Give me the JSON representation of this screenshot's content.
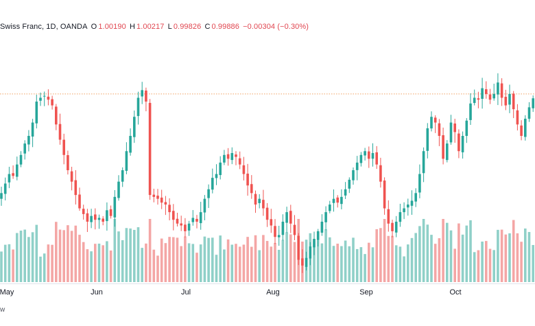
{
  "legend": {
    "symbol": "Swiss Franc, 1D, OANDA",
    "o_label": "O",
    "o": "1.00190",
    "h_label": "H",
    "h": "1.00217",
    "l_label": "L",
    "l": "0.99826",
    "c_label": "C",
    "c": "0.99886",
    "change": "−0.00304 (−0.30%)"
  },
  "footer": {
    "text": "w"
  },
  "colors": {
    "up": "#26a69a",
    "down": "#ef5350",
    "vol_up": "#8fd0c8",
    "vol_down": "#f4a6a5",
    "resistance": "#f0a060"
  },
  "chart_data": {
    "type": "candlestick",
    "interval": "1D",
    "resistance_line": 1.0,
    "x_tick_labels": [
      "May",
      "Jun",
      "Jul",
      "Aug",
      "Sep",
      "Oct"
    ],
    "ylim": [
      0.962,
      1.016
    ],
    "closes": [
      0.974,
      0.9765,
      0.979,
      0.9785,
      0.9815,
      0.984,
      0.987,
      0.989,
      0.9925,
      0.998,
      0.999,
      0.9995,
      0.9985,
      0.997,
      0.992,
      0.988,
      0.984,
      0.98,
      0.977,
      0.9735,
      0.97,
      0.9685,
      0.9665,
      0.968,
      0.967,
      0.9675,
      0.9665,
      0.9695,
      0.968,
      0.973,
      0.977,
      0.98,
      0.985,
      0.989,
      0.994,
      0.999,
      1.001,
      0.998,
      0.9735,
      0.973,
      0.9725,
      0.9715,
      0.971,
      0.969,
      0.967,
      0.966,
      0.9655,
      0.964,
      0.966,
      0.9675,
      0.9665,
      0.969,
      0.9725,
      0.975,
      0.978,
      0.979,
      0.982,
      0.984,
      0.983,
      0.9845,
      0.9835,
      0.9815,
      0.979,
      0.976,
      0.974,
      0.971,
      0.9725,
      0.97,
      0.967,
      0.9655,
      0.9625,
      0.963,
      0.9665,
      0.969,
      0.966,
      0.963,
      0.9565,
      0.955,
      0.957,
      0.96,
      0.962,
      0.964,
      0.9665,
      0.969,
      0.971,
      0.9725,
      0.9715,
      0.973,
      0.975,
      0.9775,
      0.98,
      0.982,
      0.984,
      0.985,
      0.983,
      0.9845,
      0.9815,
      0.977,
      0.97,
      0.966,
      0.964,
      0.9665,
      0.969,
      0.97,
      0.971,
      0.972,
      0.974,
      0.979,
      0.985,
      0.991,
      0.994,
      0.9925,
      0.989,
      0.983,
      0.987,
      0.9925,
      0.99,
      0.985,
      0.989,
      0.993,
      0.9975,
      0.999,
      0.9985,
      1.0015,
      1.0,
      0.9985,
      1.0,
      1.003,
      0.999,
      0.997,
      1.0,
      0.996,
      0.992,
      0.989,
      0.9935,
      0.9965,
      0.99886
    ]
  }
}
